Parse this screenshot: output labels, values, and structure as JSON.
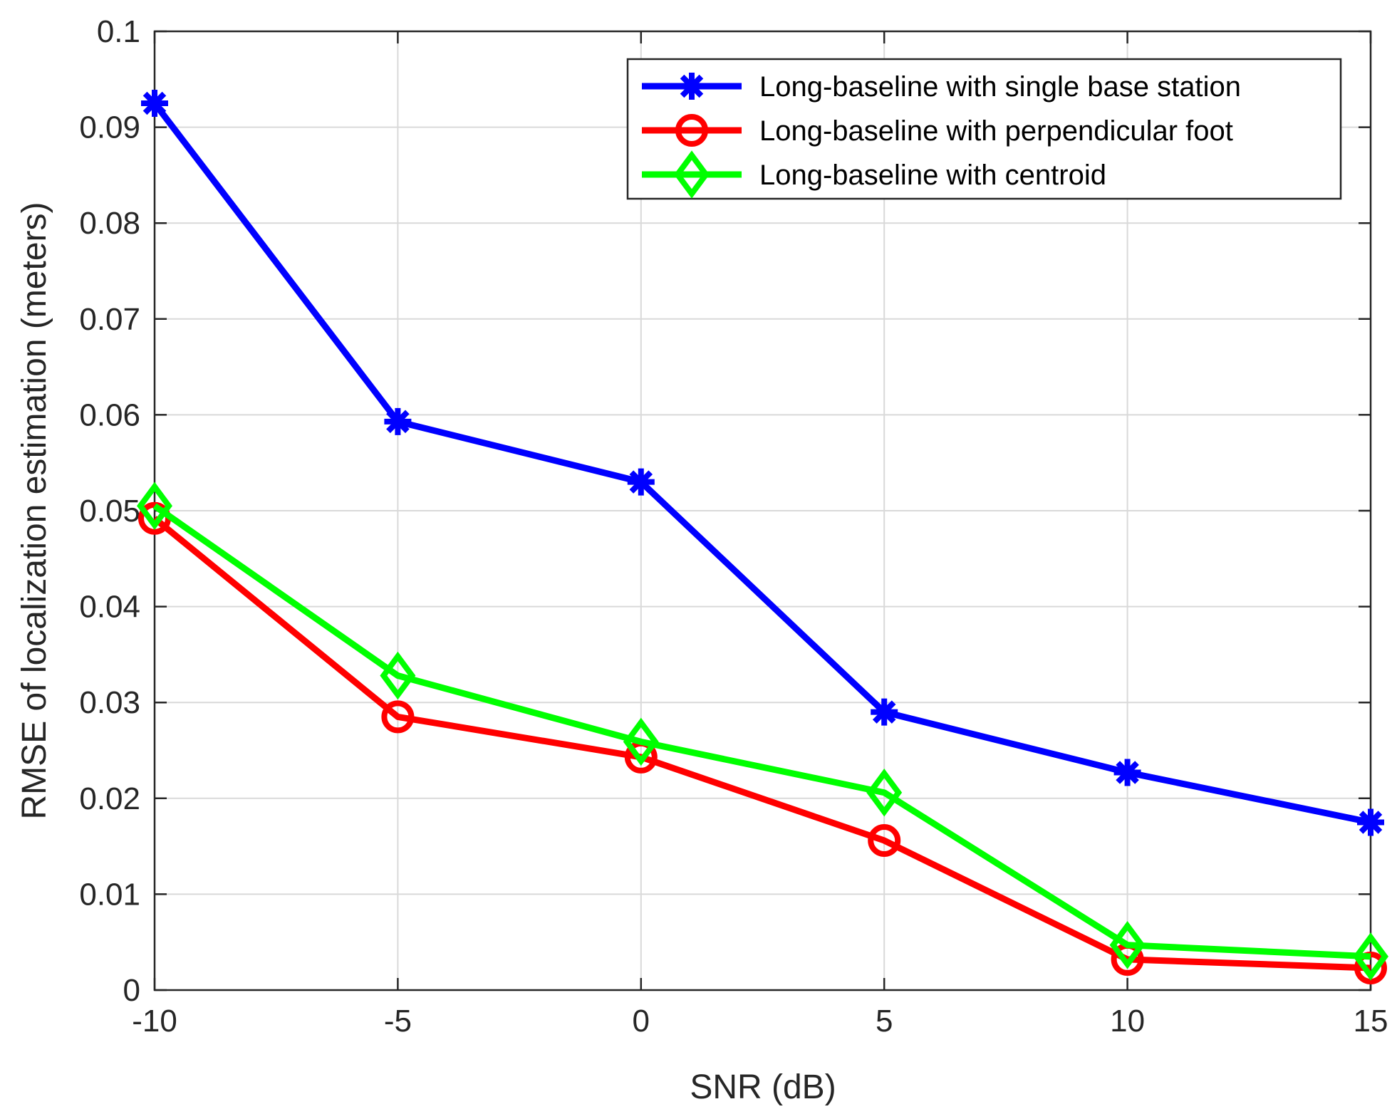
{
  "chart_data": {
    "type": "line",
    "title": "",
    "xlabel": "SNR (dB)",
    "ylabel": "RMSE of localization estimation (meters)",
    "x": [
      -10,
      -5,
      0,
      5,
      10,
      15
    ],
    "xlim": [
      -10,
      15
    ],
    "ylim": [
      0,
      0.1
    ],
    "xticks": [
      -10,
      -5,
      0,
      5,
      10,
      15
    ],
    "xtick_labels": [
      "-10",
      "-5",
      "0",
      "5",
      "10",
      "15"
    ],
    "yticks": [
      0,
      0.01,
      0.02,
      0.03,
      0.04,
      0.05,
      0.06,
      0.07,
      0.08,
      0.09,
      0.1
    ],
    "ytick_labels": [
      "0",
      "0.01",
      "0.02",
      "0.03",
      "0.04",
      "0.05",
      "0.06",
      "0.07",
      "0.08",
      "0.09",
      "0.1"
    ],
    "grid": true,
    "legend_position": "top-right",
    "series": [
      {
        "name": "Long-baseline with single base station",
        "color": "#0000ff",
        "marker": "asterisk",
        "values": [
          0.0925,
          0.0593,
          0.053,
          0.029,
          0.0227,
          0.0175
        ]
      },
      {
        "name": "Long-baseline with perpendicular foot",
        "color": "#ff0000",
        "marker": "circle",
        "values": [
          0.0492,
          0.0285,
          0.0243,
          0.0156,
          0.0032,
          0.0023
        ]
      },
      {
        "name": "Long-baseline with centroid",
        "color": "#00ff00",
        "marker": "diamond",
        "values": [
          0.0505,
          0.0328,
          0.0259,
          0.0206,
          0.0047,
          0.0035
        ]
      }
    ]
  }
}
